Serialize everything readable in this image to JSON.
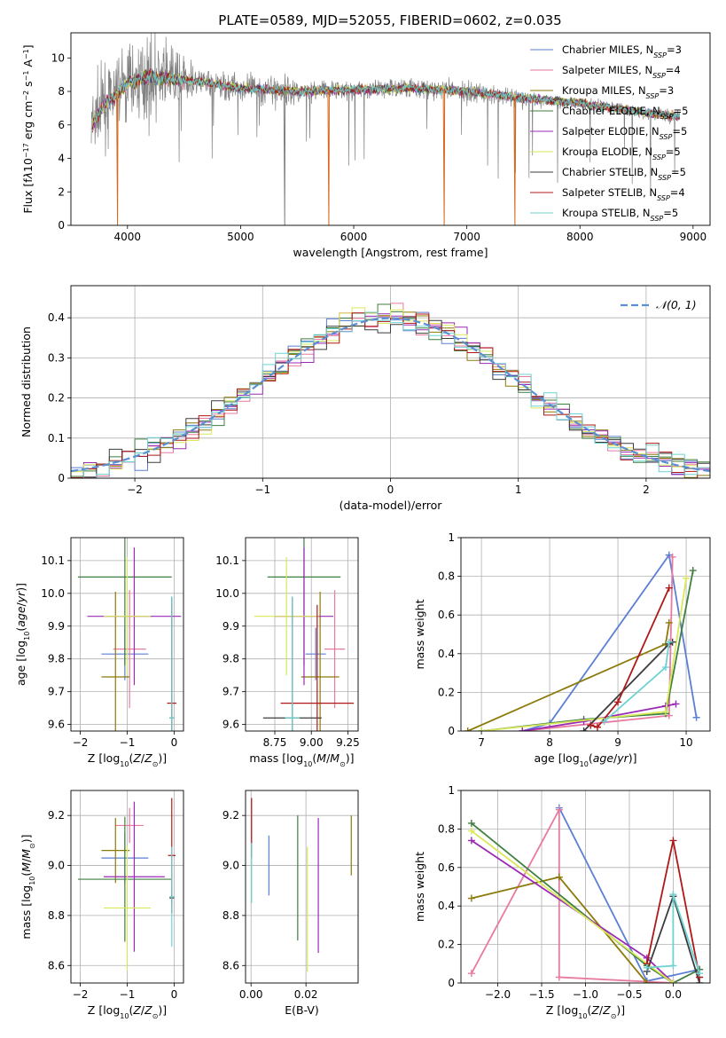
{
  "figure": {
    "title": "PLATE=0589, MJD=52055, FIBERID=0602, z=0.035"
  },
  "models": [
    {
      "name": "Chabrier MILES",
      "nssp": "3",
      "color": "#5b7fd4"
    },
    {
      "name": "Salpeter MILES",
      "nssp": "4",
      "color": "#e87aa0"
    },
    {
      "name": "Kroupa MILES",
      "nssp": "3",
      "color": "#8c7a0a"
    },
    {
      "name": "Chabrier ELODIE",
      "nssp": "5",
      "color": "#3f7f3f"
    },
    {
      "name": "Salpeter ELODIE",
      "nssp": "5",
      "color": "#9a2ab4"
    },
    {
      "name": "Kroupa ELODIE",
      "nssp": "5",
      "color": "#d9e85a"
    },
    {
      "name": "Chabrier STELIB",
      "nssp": "5",
      "color": "#3c3c3c"
    },
    {
      "name": "Salpeter STELIB",
      "nssp": "4",
      "color": "#b01818"
    },
    {
      "name": "Kroupa STELIB",
      "nssp": "5",
      "color": "#6fd2d2"
    }
  ],
  "chart_data": [
    {
      "id": "spectrum",
      "type": "line",
      "title": "PLATE=0589, MJD=52055, FIBERID=0602, z=0.035",
      "xlabel": "wavelength [Angstrom, rest frame]",
      "ylabel_html": "Flux [f<tspan font-style='italic'>λ</tspan>10<tspan baseline-shift='super' font-size='8'>−17</tspan> erg cm<tspan baseline-shift='super' font-size='8'>−2</tspan> s<tspan baseline-shift='super' font-size='8'>−1</tspan> A<tspan baseline-shift='super' font-size='8'>−1</tspan>]",
      "xlim": [
        3500,
        9150
      ],
      "ylim": [
        0,
        11.5
      ],
      "xticks": [
        4000,
        5000,
        6000,
        7000,
        8000,
        9000
      ],
      "yticks": [
        0,
        2,
        4,
        6,
        8,
        10
      ],
      "grid": false,
      "legend": "top-right",
      "data_range": [
        3680,
        8880
      ],
      "continuum": {
        "x": [
          3680,
          3800,
          3900,
          4000,
          4200,
          4400,
          4600,
          5000,
          5500,
          6000,
          6500,
          7000,
          7500,
          8000,
          8500,
          8880
        ],
        "y": [
          6.0,
          7.2,
          7.8,
          8.5,
          8.9,
          8.7,
          8.6,
          8.2,
          8.0,
          8.1,
          8.2,
          8.0,
          7.6,
          7.3,
          6.8,
          6.5
        ]
      },
      "dropouts": [
        {
          "x": 3912,
          "model": "Kroupa MILES"
        },
        {
          "x": 5390,
          "model": "Chabrier STELIB"
        },
        {
          "x": 5780,
          "model": "Kroupa MILES"
        },
        {
          "x": 6800,
          "model": "Kroupa MILES"
        },
        {
          "x": 7425,
          "model": "Kroupa MILES"
        }
      ]
    },
    {
      "id": "residuals",
      "type": "bar",
      "xlabel": "(data-model)/error",
      "ylabel": "Normed distribution",
      "xlim": [
        -2.5,
        2.5
      ],
      "ylim": [
        0,
        0.48
      ],
      "xticks": [
        -2,
        -1,
        0,
        1,
        2
      ],
      "yticks": [
        0.0,
        0.1,
        0.2,
        0.3,
        0.4
      ],
      "grid": true,
      "legend": "top-right",
      "reference_label": "𝒩(0, 1)",
      "reference": {
        "mu": 0,
        "sigma": 1,
        "color": "#5b8fd4"
      },
      "bin_width": 0.1
    },
    {
      "id": "age-vs-z",
      "type": "scatter",
      "xlabel_html": "Z [log<tspan baseline-shift='sub' font-size='8'>10</tspan>(<tspan font-style='italic'>Z</tspan>/<tspan font-style='italic'>Z</tspan><tspan baseline-shift='sub' font-size='8'>⊙</tspan>)]",
      "ylabel_html": "age  [log<tspan baseline-shift='sub' font-size='8'>10</tspan>(<tspan font-style='italic'>age</tspan>/<tspan font-style='italic'>yr</tspan>)]",
      "xlim": [
        -2.2,
        0.2
      ],
      "ylim": [
        9.58,
        10.17
      ],
      "xticks": [
        -2,
        -1,
        0
      ],
      "yticks": [
        9.6,
        9.7,
        9.8,
        9.9,
        10.0,
        10.1
      ],
      "yticklabels": [
        "9.6",
        "9.7",
        "9.8",
        "9.9",
        "10.0",
        "10.1"
      ],
      "grid": true,
      "points": [
        {
          "model": "Chabrier MILES",
          "x": -1.05,
          "xerr": 0.5,
          "y": 9.815,
          "yerr": 0.08
        },
        {
          "model": "Salpeter MILES",
          "x": -0.95,
          "xerr": 0.35,
          "y": 9.83,
          "yerr": 0.18
        },
        {
          "model": "Kroupa MILES",
          "x": -1.25,
          "xerr": 0.3,
          "y": 9.745,
          "yerr": 0.26
        },
        {
          "model": "Chabrier ELODIE",
          "x": -1.05,
          "xerr": 1.0,
          "y": 10.05,
          "yerr": 0.27
        },
        {
          "model": "Salpeter ELODIE",
          "x": -0.85,
          "xerr": 1.0,
          "y": 9.93,
          "yerr": 0.21
        },
        {
          "model": "Kroupa ELODIE",
          "x": -1.0,
          "xerr": 0.5,
          "y": 9.93,
          "yerr": 0.18
        },
        {
          "model": "Chabrier STELIB",
          "x": -0.05,
          "xerr": 0.05,
          "y": 9.62,
          "yerr": 0.37
        },
        {
          "model": "Salpeter STELIB",
          "x": -0.05,
          "xerr": 0.1,
          "y": 9.665,
          "yerr": 0.3
        },
        {
          "model": "Kroupa STELIB",
          "x": -0.05,
          "xerr": 0.05,
          "y": 9.62,
          "yerr": 0.37
        }
      ]
    },
    {
      "id": "age-vs-mass",
      "type": "scatter",
      "xlabel_html": "mass [log<tspan baseline-shift='sub' font-size='8'>10</tspan>(<tspan font-style='italic'>M</tspan>/<tspan font-style='italic'>M</tspan><tspan baseline-shift='sub' font-size='8'>⊙</tspan>)]",
      "ylabel_html": "",
      "xlim": [
        8.55,
        9.32
      ],
      "ylim": [
        9.58,
        10.17
      ],
      "xticks": [
        8.75,
        9.0,
        9.25
      ],
      "xticklabels": [
        "8.75",
        "9.00",
        "9.25"
      ],
      "yticks": [
        9.6,
        9.7,
        9.8,
        9.9,
        10.0,
        10.1
      ],
      "yticklabels": [
        "9.6",
        "9.7",
        "9.8",
        "9.9",
        "10.0",
        "10.1"
      ],
      "grid": true,
      "points": [
        {
          "model": "Chabrier MILES",
          "x": 9.03,
          "xerr": 0.07,
          "y": 9.815,
          "yerr": 0.08
        },
        {
          "model": "Salpeter MILES",
          "x": 9.16,
          "xerr": 0.07,
          "y": 9.83,
          "yerr": 0.18
        },
        {
          "model": "Kroupa MILES",
          "x": 9.06,
          "xerr": 0.13,
          "y": 9.745,
          "yerr": 0.26
        },
        {
          "model": "Chabrier ELODIE",
          "x": 8.95,
          "xerr": 0.25,
          "y": 10.05,
          "yerr": 0.27
        },
        {
          "model": "Salpeter ELODIE",
          "x": 8.95,
          "xerr": 0.2,
          "y": 9.93,
          "yerr": 0.21
        },
        {
          "model": "Kroupa ELODIE",
          "x": 8.83,
          "xerr": 0.22,
          "y": 9.93,
          "yerr": 0.18
        },
        {
          "model": "Chabrier STELIB",
          "x": 8.87,
          "xerr": 0.2,
          "y": 9.62,
          "yerr": 0.37
        },
        {
          "model": "Salpeter STELIB",
          "x": 9.04,
          "xerr": 0.25,
          "y": 9.665,
          "yerr": 0.3
        },
        {
          "model": "Kroupa STELIB",
          "x": 8.87,
          "xerr": 0.05,
          "y": 9.62,
          "yerr": 0.37
        }
      ]
    },
    {
      "id": "mass-weight-vs-age",
      "type": "line",
      "xlabel_html": "age  [log<tspan baseline-shift='sub' font-size='8'>10</tspan>(<tspan font-style='italic'>age</tspan>/<tspan font-style='italic'>yr</tspan>)]",
      "ylabel": "mass weight",
      "xlim": [
        6.7,
        10.35
      ],
      "ylim": [
        0,
        1.0
      ],
      "xticks": [
        7,
        8,
        9,
        10
      ],
      "yticks": [
        0.0,
        0.2,
        0.4,
        0.6,
        0.8,
        1.0
      ],
      "grid": true,
      "series": [
        {
          "model": "Chabrier MILES",
          "x": [
            7.6,
            8.0,
            9.75,
            10.15
          ],
          "y": [
            0.0,
            0.04,
            0.91,
            0.07
          ]
        },
        {
          "model": "Salpeter MILES",
          "x": [
            7.6,
            9.75,
            9.8
          ],
          "y": [
            0.0,
            0.08,
            0.9
          ]
        },
        {
          "model": "Kroupa MILES",
          "x": [
            6.8,
            9.7,
            9.75
          ],
          "y": [
            0.0,
            0.45,
            0.56
          ]
        },
        {
          "model": "Chabrier ELODIE",
          "x": [
            7.0,
            8.5,
            9.7,
            10.1
          ],
          "y": [
            0.0,
            0.06,
            0.09,
            0.83
          ]
        },
        {
          "model": "Salpeter ELODIE",
          "x": [
            7.6,
            8.5,
            9.7,
            9.85
          ],
          "y": [
            0.0,
            0.05,
            0.13,
            0.14
          ]
        },
        {
          "model": "Kroupa ELODIE",
          "x": [
            7.0,
            9.7,
            10.0
          ],
          "y": [
            0.0,
            0.1,
            0.79
          ]
        },
        {
          "model": "Chabrier STELIB",
          "x": [
            8.5,
            9.75,
            9.8
          ],
          "y": [
            0.0,
            0.45,
            0.46
          ]
        },
        {
          "model": "Salpeter STELIB",
          "x": [
            8.6,
            8.7,
            9.0,
            9.75
          ],
          "y": [
            0.03,
            0.02,
            0.15,
            0.74
          ]
        },
        {
          "model": "Kroupa STELIB",
          "x": [
            8.8,
            9.7,
            9.75
          ],
          "y": [
            0.05,
            0.33,
            0.46
          ]
        }
      ]
    },
    {
      "id": "mass-vs-z",
      "type": "scatter",
      "xlabel_html": "Z [log<tspan baseline-shift='sub' font-size='8'>10</tspan>(<tspan font-style='italic'>Z</tspan>/<tspan font-style='italic'>Z</tspan><tspan baseline-shift='sub' font-size='8'>⊙</tspan>)]",
      "ylabel_html": "mass [log<tspan baseline-shift='sub' font-size='8'>10</tspan>(<tspan font-style='italic'>M</tspan>/<tspan font-style='italic'>M</tspan><tspan baseline-shift='sub' font-size='8'>⊙</tspan>)]",
      "xlim": [
        -2.2,
        0.2
      ],
      "ylim": [
        8.53,
        9.3
      ],
      "xticks": [
        -2,
        -1,
        0
      ],
      "yticks": [
        8.6,
        8.8,
        9.0,
        9.2
      ],
      "yticklabels": [
        "8.6",
        "8.8",
        "9.0",
        "9.2"
      ],
      "grid": true,
      "points": [
        {
          "model": "Chabrier MILES",
          "x": -1.05,
          "xerr": 0.5,
          "y": 9.03,
          "yerr": 0.1
        },
        {
          "model": "Salpeter MILES",
          "x": -0.95,
          "xerr": 0.3,
          "y": 9.16,
          "yerr": 0.07
        },
        {
          "model": "Kroupa MILES",
          "x": -1.25,
          "xerr": 0.3,
          "y": 9.06,
          "yerr": 0.13
        },
        {
          "model": "Chabrier ELODIE",
          "x": -1.05,
          "xerr": 1.0,
          "y": 8.945,
          "yerr": 0.25
        },
        {
          "model": "Salpeter ELODIE",
          "x": -0.85,
          "xerr": 0.65,
          "y": 8.955,
          "yerr": 0.3
        },
        {
          "model": "Kroupa ELODIE",
          "x": -1.0,
          "xerr": 0.5,
          "y": 8.83,
          "yerr": 0.25
        },
        {
          "model": "Chabrier STELIB",
          "x": -0.05,
          "xerr": 0.05,
          "y": 8.87,
          "yerr": 0.02
        },
        {
          "model": "Salpeter STELIB",
          "x": -0.05,
          "xerr": 0.08,
          "y": 9.04,
          "yerr": 0.23
        },
        {
          "model": "Kroupa STELIB",
          "x": -0.05,
          "xerr": 0.05,
          "y": 8.875,
          "yerr": 0.2
        }
      ]
    },
    {
      "id": "mass-vs-ebv",
      "type": "scatter",
      "xlabel": "E(B-V)",
      "ylabel_html": "",
      "xlim": [
        -0.002,
        0.039
      ],
      "ylim": [
        8.53,
        9.3
      ],
      "xticks": [
        0.0,
        0.02
      ],
      "xticklabels": [
        "0.00",
        "0.02"
      ],
      "yticks": [
        8.6,
        8.8,
        9.0,
        9.2
      ],
      "yticklabels": [
        "8.6",
        "8.8",
        "9.0",
        "9.2"
      ],
      "grid": true,
      "points": [
        {
          "model": "Chabrier MILES",
          "x": 0.0065,
          "xerr": 0,
          "y": 9.0,
          "yerr": 0.12
        },
        {
          "model": "Kroupa MILES",
          "x": 0.0365,
          "xerr": 0,
          "y": 9.08,
          "yerr": 0.12
        },
        {
          "model": "Chabrier ELODIE",
          "x": 0.017,
          "xerr": 0,
          "y": 8.95,
          "yerr": 0.25
        },
        {
          "model": "Salpeter ELODIE",
          "x": 0.0245,
          "xerr": 0,
          "y": 8.92,
          "yerr": 0.27
        },
        {
          "model": "Kroupa ELODIE",
          "x": 0.0205,
          "xerr": 0,
          "y": 8.825,
          "yerr": 0.25
        },
        {
          "model": "Salpeter STELIB",
          "x": 0.0002,
          "xerr": 0,
          "y": 9.15,
          "yerr": 0.12
        },
        {
          "model": "Kroupa STELIB",
          "x": 0.0002,
          "xerr": 0,
          "y": 8.97,
          "yerr": 0.12
        }
      ]
    },
    {
      "id": "mass-weight-vs-z",
      "type": "line",
      "xlabel_html": "Z [log<tspan baseline-shift='sub' font-size='8'>10</tspan>(<tspan font-style='italic'>Z</tspan>/<tspan font-style='italic'>Z</tspan><tspan baseline-shift='sub' font-size='8'>⊙</tspan>)]",
      "ylabel": "mass weight",
      "xlim": [
        -2.42,
        0.42
      ],
      "ylim": [
        0,
        1.0
      ],
      "xticks": [
        -2.0,
        -1.5,
        -1.0,
        -0.5,
        0.0
      ],
      "xticklabels": [
        "−2.0",
        "−1.5",
        "−1.0",
        "−0.5",
        "0.0"
      ],
      "yticks": [
        0.0,
        0.2,
        0.4,
        0.6,
        0.8,
        1.0
      ],
      "grid": true,
      "series": [
        {
          "model": "Chabrier MILES",
          "x": [
            -1.3,
            -0.3,
            0.3
          ],
          "y": [
            0.91,
            0.01,
            0.07
          ]
        },
        {
          "model": "Salpeter MILES",
          "x": [
            -2.3,
            -1.3,
            -1.3,
            0.0
          ],
          "y": [
            0.05,
            0.9,
            0.03,
            0.0
          ]
        },
        {
          "model": "Kroupa MILES",
          "x": [
            -2.3,
            -1.3,
            -0.3
          ],
          "y": [
            0.44,
            0.55,
            0.0
          ]
        },
        {
          "model": "Chabrier ELODIE",
          "x": [
            -2.3,
            -0.3,
            0.0,
            0.3
          ],
          "y": [
            0.83,
            0.09,
            0.0,
            0.07
          ]
        },
        {
          "model": "Salpeter ELODIE",
          "x": [
            -2.3,
            -0.3,
            0.0
          ],
          "y": [
            0.74,
            0.13,
            0.0
          ]
        },
        {
          "model": "Kroupa ELODIE",
          "x": [
            -2.3,
            -0.3,
            0.0
          ],
          "y": [
            0.79,
            0.1,
            0.0
          ]
        },
        {
          "model": "Chabrier STELIB",
          "x": [
            -0.3,
            0.0,
            0.3
          ],
          "y": [
            0.06,
            0.45,
            0.0
          ]
        },
        {
          "model": "Salpeter STELIB",
          "x": [
            -0.3,
            0.0,
            0.3
          ],
          "y": [
            0.1,
            0.74,
            0.03
          ]
        },
        {
          "model": "Kroupa STELIB",
          "x": [
            -0.3,
            0.0,
            0.0,
            0.3
          ],
          "y": [
            0.08,
            0.09,
            0.46,
            0.05
          ]
        }
      ]
    }
  ]
}
